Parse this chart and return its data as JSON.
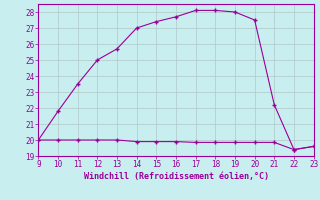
{
  "xlabel": "Windchill (Refroidissement éolien,°C)",
  "x_upper": [
    9,
    10,
    11,
    12,
    13,
    14,
    15,
    16,
    17,
    18,
    19,
    20,
    21,
    22,
    23
  ],
  "y_upper": [
    20,
    21.8,
    23.5,
    25,
    25.7,
    27,
    27.4,
    27.7,
    28.1,
    28.1,
    28,
    27.5,
    22.2,
    19.4,
    19.6
  ],
  "x_lower": [
    9,
    10,
    11,
    12,
    13,
    14,
    15,
    16,
    17,
    18,
    19,
    20,
    21,
    22,
    23
  ],
  "y_lower": [
    20,
    20,
    20,
    20,
    20,
    19.9,
    19.9,
    19.9,
    19.85,
    19.85,
    19.85,
    19.85,
    19.85,
    19.4,
    19.6
  ],
  "line_color": "#990099",
  "marker": "+",
  "marker_size": 3,
  "bg_color": "#c8eef0",
  "grid_color": "#b0c8c8",
  "xlim": [
    9,
    23
  ],
  "ylim": [
    19,
    28.5
  ],
  "yticks": [
    19,
    20,
    21,
    22,
    23,
    24,
    25,
    26,
    27,
    28
  ],
  "xticks": [
    9,
    10,
    11,
    12,
    13,
    14,
    15,
    16,
    17,
    18,
    19,
    20,
    21,
    22,
    23
  ],
  "tick_color": "#990099",
  "label_color": "#990099",
  "axis_border_color": "#990099"
}
